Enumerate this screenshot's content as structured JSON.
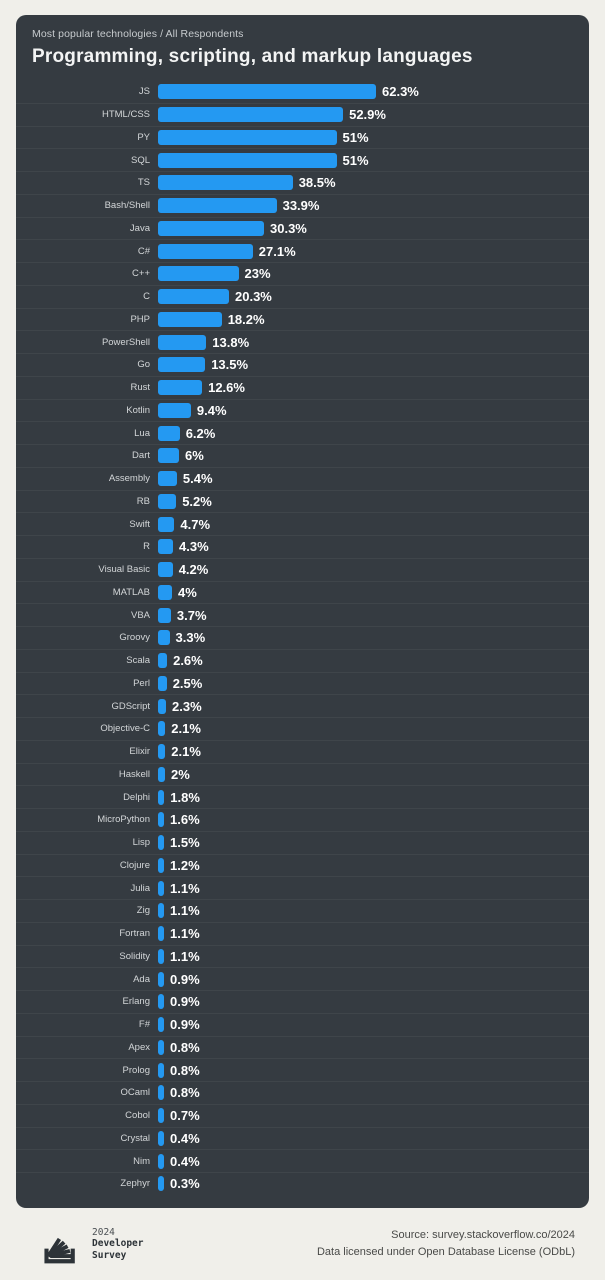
{
  "chart_data": {
    "type": "bar",
    "orientation": "horizontal",
    "subtitle": "Most popular technologies / All Respondents",
    "title": "Programming, scripting, and markup languages",
    "unit": "%",
    "xlim": [
      0,
      65
    ],
    "grid": false,
    "legend": "none",
    "bar_color": "#2499f2",
    "categories": [
      "JS",
      "HTML/CSS",
      "PY",
      "SQL",
      "TS",
      "Bash/Shell",
      "Java",
      "C#",
      "C++",
      "C",
      "PHP",
      "PowerShell",
      "Go",
      "Rust",
      "Kotlin",
      "Lua",
      "Dart",
      "Assembly",
      "RB",
      "Swift",
      "R",
      "Visual Basic",
      "MATLAB",
      "VBA",
      "Groovy",
      "Scala",
      "Perl",
      "GDScript",
      "Objective-C",
      "Elixir",
      "Haskell",
      "Delphi",
      "MicroPython",
      "Lisp",
      "Clojure",
      "Julia",
      "Zig",
      "Fortran",
      "Solidity",
      "Ada",
      "Erlang",
      "F#",
      "Apex",
      "Prolog",
      "OCaml",
      "Cobol",
      "Crystal",
      "Nim",
      "Zephyr"
    ],
    "values": [
      62.3,
      52.9,
      51,
      51,
      38.5,
      33.9,
      30.3,
      27.1,
      23,
      20.3,
      18.2,
      13.8,
      13.5,
      12.6,
      9.4,
      6.2,
      6,
      5.4,
      5.2,
      4.7,
      4.3,
      4.2,
      4,
      3.7,
      3.3,
      2.6,
      2.5,
      2.3,
      2.1,
      2.1,
      2,
      1.8,
      1.6,
      1.5,
      1.2,
      1.1,
      1.1,
      1.1,
      1.1,
      0.9,
      0.9,
      0.9,
      0.8,
      0.8,
      0.8,
      0.7,
      0.4,
      0.4,
      0.3
    ],
    "value_labels": [
      "62.3%",
      "52.9%",
      "51%",
      "51%",
      "38.5%",
      "33.9%",
      "30.3%",
      "27.1%",
      "23%",
      "20.3%",
      "18.2%",
      "13.8%",
      "13.5%",
      "12.6%",
      "9.4%",
      "6.2%",
      "6%",
      "5.4%",
      "5.2%",
      "4.7%",
      "4.3%",
      "4.2%",
      "4%",
      "3.7%",
      "3.3%",
      "2.6%",
      "2.5%",
      "2.3%",
      "2.1%",
      "2.1%",
      "2%",
      "1.8%",
      "1.6%",
      "1.5%",
      "1.2%",
      "1.1%",
      "1.1%",
      "1.1%",
      "1.1%",
      "0.9%",
      "0.9%",
      "0.9%",
      "0.8%",
      "0.8%",
      "0.8%",
      "0.7%",
      "0.4%",
      "0.4%",
      "0.3%"
    ]
  },
  "footer": {
    "brand": {
      "year": "2024",
      "line1": "Developer",
      "line2": "Survey"
    },
    "source_line1": "Source: survey.stackoverflow.co/2024",
    "source_line2": "Data licensed under Open Database License (ODbL)"
  },
  "colors": {
    "page_background": "#f0efea",
    "card_background": "#353b41",
    "bar": "#2499f2",
    "value_text": "#ffffff",
    "label_text": "#d3d6d8"
  }
}
